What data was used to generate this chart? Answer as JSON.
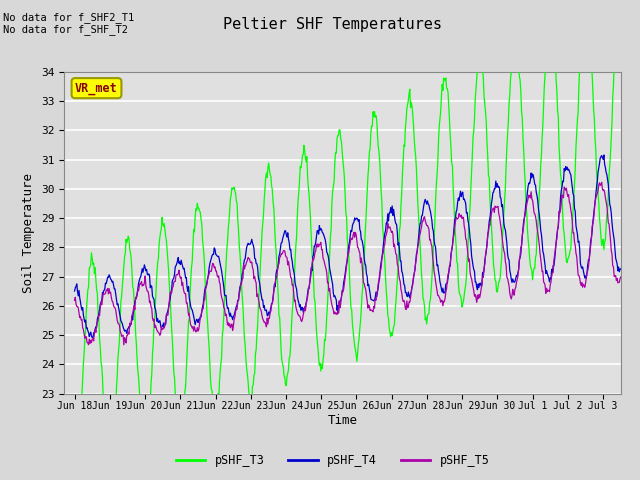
{
  "title": "Peltier SHF Temperatures",
  "xlabel": "Time",
  "ylabel": "Soil Temperature",
  "ylim": [
    23.0,
    34.0
  ],
  "yticks": [
    23.0,
    24.0,
    25.0,
    26.0,
    27.0,
    28.0,
    29.0,
    30.0,
    31.0,
    32.0,
    33.0,
    34.0
  ],
  "colors": {
    "pSHF_T3": "#00ff00",
    "pSHF_T4": "#0000cc",
    "pSHF_T5": "#aa00aa"
  },
  "annotation_text": "No data for f_SHF2_T1\nNo data for f_SHF_T2",
  "vr_met_label": "VR_met",
  "bg_color": "#d8d8d8",
  "plot_bg_color": "#e0e0e0",
  "grid_color": "#ffffff",
  "xtick_labels": [
    "Jun 18",
    "Jun 19",
    "Jun 20",
    "Jun 21",
    "Jun 22",
    "Jun 23",
    "Jun 24",
    "Jun 25",
    "Jun 26",
    "Jun 27",
    "Jun 28",
    "Jun 29",
    "Jun 30",
    "Jul 1",
    "Jul 2",
    "Jul 3"
  ]
}
